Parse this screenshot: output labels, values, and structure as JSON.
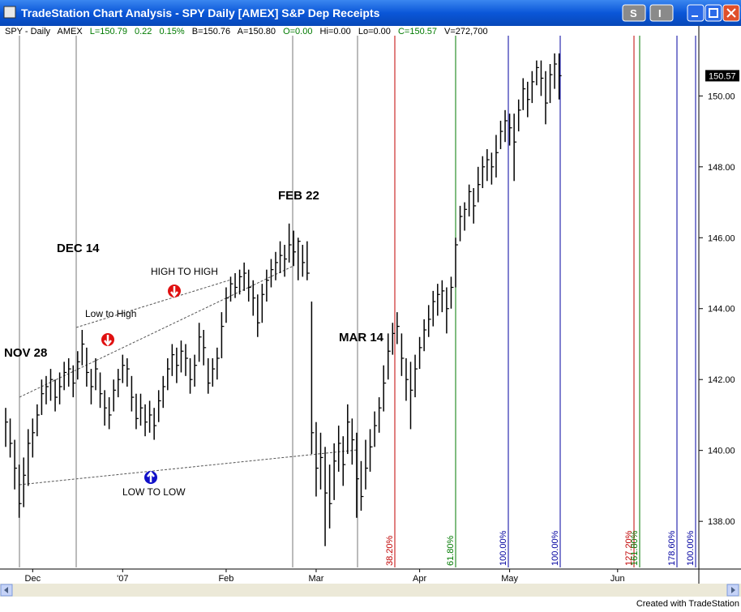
{
  "window": {
    "title": "TradeStation Chart Analysis - SPY  Daily  [AMEX] S&P Dep Receipts",
    "buttons": [
      "S",
      "I"
    ],
    "footer": "Created with TradeStation"
  },
  "info": [
    "SPY - Daily",
    "AMEX",
    "L=150.79",
    "0.22",
    "0.15%",
    "B=150.76",
    "A=150.80",
    "O=0.00",
    "Hi=0.00",
    "Lo=0.00",
    "C=150.57",
    "V=272,700"
  ],
  "chart_data": {
    "type": "ohlc",
    "color": "#000000",
    "categories": [
      null,
      null,
      null,
      null,
      null,
      null,
      "Dec",
      null,
      null,
      null,
      null,
      null,
      null,
      null,
      null,
      null,
      null,
      null,
      null,
      null,
      null,
      null,
      null,
      null,
      null,
      null,
      "'07",
      null,
      null,
      null,
      null,
      null,
      null,
      null,
      null,
      null,
      null,
      null,
      null,
      null,
      null,
      null,
      null,
      null,
      null,
      null,
      null,
      null,
      null,
      "Feb",
      null,
      null,
      null,
      null,
      null,
      null,
      null,
      null,
      null,
      null,
      null,
      null,
      null,
      null,
      null,
      null,
      null,
      null,
      null,
      "Mar",
      null,
      null,
      null,
      null,
      null,
      null,
      null,
      null,
      null,
      null,
      null,
      null,
      null,
      null,
      null,
      null,
      null,
      null,
      null,
      null,
      null,
      null,
      "Apr",
      null,
      null,
      null,
      null,
      null,
      null,
      null,
      null,
      null,
      null,
      null,
      null,
      null,
      null,
      null,
      null,
      null,
      null,
      null,
      "May",
      null,
      null,
      null,
      null,
      null,
      null,
      null,
      null,
      null,
      null,
      null,
      null,
      null,
      null,
      null,
      null,
      null,
      null,
      null,
      null,
      null,
      null,
      null,
      "Jun",
      null,
      null,
      null,
      null,
      null,
      null,
      null,
      null,
      null,
      null,
      null,
      null,
      null,
      null,
      null,
      null,
      null
    ],
    "high": [
      141.2,
      140.9,
      140.3,
      139.6,
      139.8,
      140.6,
      140.9,
      141.3,
      142.0,
      142.1,
      142.3,
      142.0,
      142.2,
      142.5,
      142.6,
      142.4,
      142.8,
      143.4,
      142.9,
      142.3,
      142.6,
      142.2,
      141.7,
      141.5,
      142.0,
      142.3,
      142.7,
      142.6,
      142.1,
      141.6,
      141.6,
      141.3,
      141.4,
      141.2,
      141.7,
      142.1,
      142.6,
      143.0,
      142.9,
      143.1,
      143.0,
      142.6,
      142.7,
      143.6,
      143.4,
      142.6,
      142.6,
      142.9,
      143.9,
      144.6,
      144.9,
      145.0,
      145.1,
      145.3,
      145.1,
      144.8,
      144.4,
      144.7,
      145.1,
      145.4,
      145.6,
      145.9,
      145.8,
      146.4,
      146.2,
      146.0,
      145.8,
      145.9,
      144.2,
      140.8,
      140.5,
      140.1,
      139.6,
      140.2,
      140.7,
      140.4,
      141.3,
      140.9,
      140.5,
      139.7,
      140.3,
      140.6,
      141.1,
      141.5,
      142.4,
      143.3,
      143.6,
      143.9,
      143.3,
      142.6,
      142.5,
      142.7,
      143.2,
      143.7,
      144.1,
      144.5,
      144.7,
      144.8,
      144.6,
      144.9,
      146.0,
      146.9,
      147.0,
      147.5,
      147.4,
      148.0,
      148.3,
      148.5,
      148.4,
      148.9,
      149.3,
      149.6,
      149.5,
      149.5,
      149.9,
      150.5,
      150.4,
      150.7,
      151.0,
      151.0,
      150.7,
      150.9,
      151.2,
      151.2,
      null,
      null,
      null,
      null,
      null,
      null,
      null,
      null,
      null,
      null,
      null,
      null,
      null,
      null,
      null,
      null,
      null,
      null,
      null,
      null,
      null,
      null,
      null,
      null,
      null,
      null,
      null,
      null,
      null,
      null
    ],
    "low": [
      140.1,
      139.8,
      138.9,
      138.1,
      138.4,
      139.0,
      139.8,
      140.4,
      141.0,
      141.3,
      141.4,
      141.1,
      141.3,
      141.7,
      141.8,
      141.5,
      142.0,
      142.4,
      141.8,
      141.3,
      141.7,
      141.2,
      140.7,
      140.6,
      141.1,
      141.5,
      141.9,
      141.8,
      141.1,
      140.6,
      140.7,
      140.4,
      140.5,
      140.3,
      140.8,
      141.2,
      141.7,
      142.1,
      141.9,
      142.2,
      142.1,
      141.6,
      141.8,
      142.5,
      142.4,
      141.6,
      141.8,
      142.0,
      142.6,
      143.6,
      144.2,
      144.3,
      144.4,
      144.5,
      144.2,
      143.8,
      143.2,
      143.6,
      144.2,
      144.6,
      144.8,
      145.0,
      144.9,
      145.3,
      145.2,
      144.8,
      144.9,
      144.8,
      139.9,
      138.7,
      138.9,
      137.3,
      137.8,
      138.6,
      139.4,
      139.0,
      139.9,
      139.6,
      138.1,
      138.3,
      138.9,
      139.4,
      140.1,
      140.5,
      141.1,
      142.0,
      142.7,
      143.0,
      142.1,
      141.4,
      140.6,
      141.5,
      142.3,
      142.8,
      143.2,
      143.5,
      143.8,
      143.9,
      143.3,
      144.0,
      144.6,
      145.9,
      146.2,
      146.6,
      146.4,
      147.0,
      147.4,
      147.6,
      147.5,
      147.7,
      148.5,
      148.7,
      148.6,
      147.6,
      149.0,
      149.6,
      149.4,
      149.8,
      150.3,
      150.0,
      149.2,
      149.8,
      150.2,
      149.9,
      null,
      null,
      null,
      null,
      null,
      null,
      null,
      null,
      null,
      null,
      null,
      null,
      null,
      null,
      null,
      null,
      null,
      null,
      null,
      null,
      null,
      null,
      null,
      null,
      null,
      null,
      null,
      null,
      null,
      null
    ],
    "close": [
      140.8,
      140.2,
      139.5,
      138.5,
      139.3,
      140.2,
      140.5,
      141.0,
      141.6,
      141.8,
      142.0,
      141.5,
      141.8,
      142.2,
      142.3,
      141.9,
      142.5,
      143.0,
      142.2,
      141.8,
      142.3,
      141.6,
      141.2,
      141.0,
      141.7,
      142.0,
      142.4,
      142.3,
      141.5,
      140.9,
      141.2,
      140.8,
      141.0,
      140.7,
      141.4,
      141.8,
      142.3,
      142.7,
      142.4,
      142.8,
      142.6,
      142.0,
      142.4,
      143.2,
      142.9,
      141.9,
      142.3,
      142.6,
      143.5,
      144.3,
      144.7,
      144.6,
      144.9,
      145.0,
      144.6,
      144.3,
      143.6,
      144.4,
      144.8,
      145.1,
      145.3,
      145.5,
      145.4,
      145.8,
      145.6,
      145.9,
      145.3,
      145.0,
      140.5,
      139.5,
      139.8,
      138.8,
      138.5,
      139.7,
      140.2,
      139.6,
      140.8,
      140.3,
      139.2,
      138.7,
      139.5,
      140.1,
      140.7,
      141.2,
      141.9,
      142.8,
      143.3,
      143.5,
      142.6,
      142.0,
      141.7,
      142.3,
      142.9,
      143.4,
      143.7,
      144.2,
      144.4,
      144.5,
      144.0,
      144.6,
      145.8,
      146.6,
      146.8,
      147.3,
      146.9,
      147.5,
      148.0,
      148.2,
      148.0,
      148.4,
      149.0,
      149.3,
      149.1,
      148.7,
      149.6,
      150.2,
      149.9,
      150.4,
      150.8,
      150.5,
      149.8,
      150.6,
      150.9,
      150.57,
      null,
      null,
      null,
      null,
      null,
      null,
      null,
      null,
      null,
      null,
      null,
      null,
      null,
      null,
      null,
      null,
      null,
      null,
      null,
      null,
      null,
      null,
      null,
      null,
      null,
      null,
      null,
      null,
      null,
      null
    ],
    "ylim": [
      136.7,
      151.7
    ],
    "yticks": [
      {
        "value": 138,
        "label": "138.00"
      },
      {
        "value": 140,
        "label": "140.00"
      },
      {
        "value": 142,
        "label": "142.00"
      },
      {
        "value": 144,
        "label": "144.00"
      },
      {
        "value": 146,
        "label": "146.00"
      },
      {
        "value": 148,
        "label": "148.00"
      },
      {
        "value": 150,
        "label": "150.00"
      }
    ],
    "last_price": 150.57,
    "annotations": [
      "NOV 28",
      "DEC 14",
      "FEB 22",
      "MAR 14",
      "HIGH TO HIGH",
      "Low to High",
      "LOW TO LOW"
    ],
    "fib_labels": [
      "38.20%",
      "61.80%",
      "100.00%",
      "100.00%",
      "127.20%",
      "161.80%",
      "178.60%",
      "100.00%"
    ]
  }
}
